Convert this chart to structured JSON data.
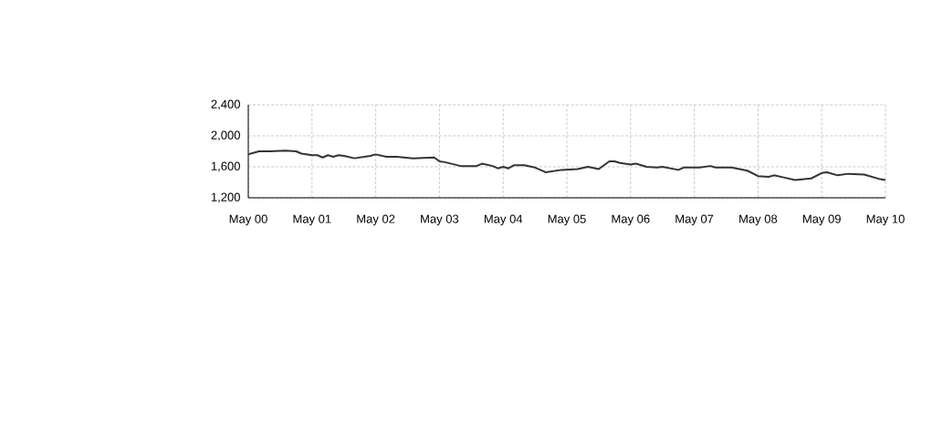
{
  "chart_data": {
    "type": "line",
    "grid": true,
    "marker": "none",
    "line_style": "solid",
    "xlim": [
      "2000-05",
      "2010-05"
    ],
    "ylim": [
      1200,
      2400
    ],
    "xticks": [
      {
        "value": "2000-05",
        "label": "May 00"
      },
      {
        "value": "2001-05",
        "label": "May 01"
      },
      {
        "value": "2002-05",
        "label": "May 02"
      },
      {
        "value": "2003-05",
        "label": "May 03"
      },
      {
        "value": "2004-05",
        "label": "May 04"
      },
      {
        "value": "2005-05",
        "label": "May 05"
      },
      {
        "value": "2006-05",
        "label": "May 06"
      },
      {
        "value": "2007-05",
        "label": "May 07"
      },
      {
        "value": "2008-05",
        "label": "May 08"
      },
      {
        "value": "2009-05",
        "label": "May 09"
      },
      {
        "value": "2010-05",
        "label": "May 10"
      }
    ],
    "yticks": [
      {
        "value": 1200,
        "label": "1,200"
      },
      {
        "value": 1600,
        "label": "1,600"
      },
      {
        "value": 2000,
        "label": "2,000"
      },
      {
        "value": 2400,
        "label": "2,400"
      }
    ],
    "series": [
      {
        "color": "#333333",
        "x": [
          "2000-05",
          "2000-06",
          "2000-07",
          "2000-09",
          "2000-12",
          "2001-02",
          "2001-03",
          "2001-05",
          "2001-06",
          "2001-07",
          "2001-08",
          "2001-09",
          "2001-10",
          "2001-11",
          "2002-01",
          "2002-04",
          "2002-05",
          "2002-07",
          "2002-09",
          "2002-12",
          "2003-04",
          "2003-05",
          "2003-06",
          "2003-09",
          "2003-12",
          "2004-01",
          "2004-03",
          "2004-04",
          "2004-05",
          "2004-06",
          "2004-07",
          "2004-09",
          "2004-11",
          "2005-01",
          "2005-04",
          "2005-07",
          "2005-09",
          "2005-11",
          "2006-01",
          "2006-02",
          "2006-03",
          "2006-05",
          "2006-06",
          "2006-08",
          "2006-10",
          "2006-11",
          "2007-02",
          "2007-03",
          "2007-06",
          "2007-08",
          "2007-09",
          "2007-12",
          "2008-03",
          "2008-05",
          "2008-07",
          "2008-08",
          "2008-10",
          "2008-12",
          "2009-03",
          "2009-05",
          "2009-06",
          "2009-08",
          "2009-10",
          "2010-01",
          "2010-04",
          "2010-05"
        ],
        "values": [
          1760,
          1780,
          1800,
          1800,
          1810,
          1800,
          1770,
          1750,
          1750,
          1720,
          1750,
          1730,
          1750,
          1740,
          1710,
          1740,
          1760,
          1730,
          1730,
          1710,
          1720,
          1670,
          1660,
          1610,
          1610,
          1640,
          1610,
          1580,
          1600,
          1580,
          1620,
          1620,
          1590,
          1530,
          1560,
          1570,
          1600,
          1570,
          1670,
          1670,
          1650,
          1630,
          1640,
          1600,
          1590,
          1600,
          1560,
          1590,
          1590,
          1610,
          1590,
          1590,
          1550,
          1480,
          1470,
          1490,
          1460,
          1430,
          1450,
          1520,
          1530,
          1490,
          1510,
          1500,
          1440,
          1430
        ]
      }
    ]
  }
}
